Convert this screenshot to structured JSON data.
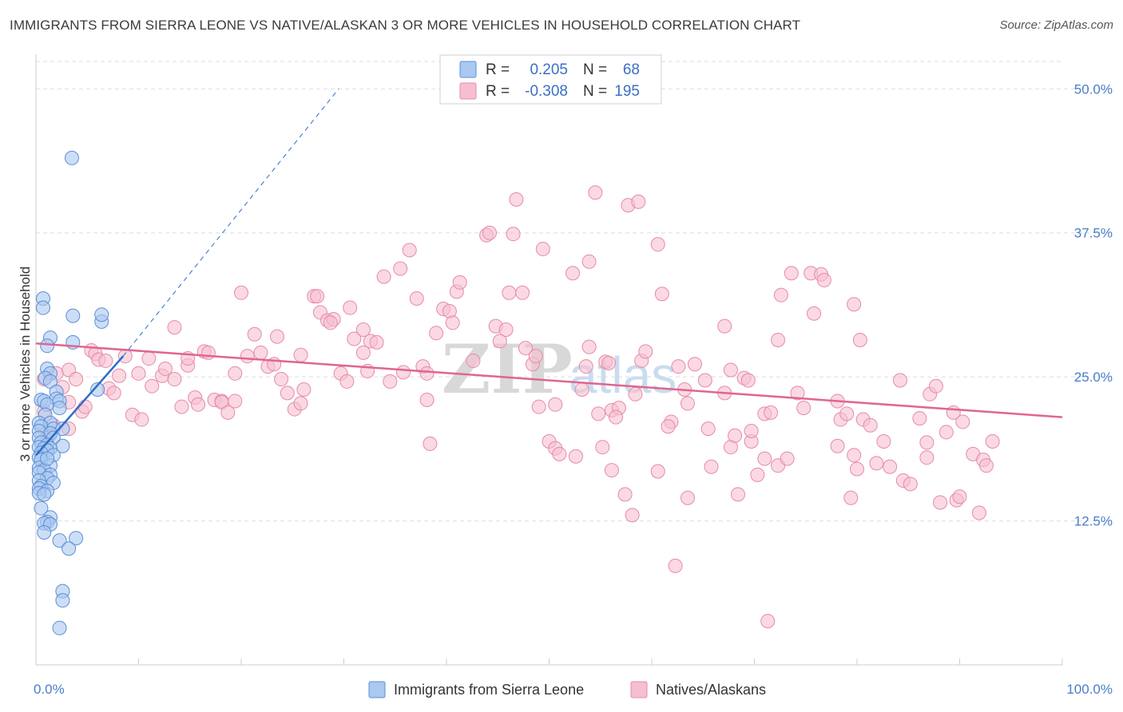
{
  "title": "IMMIGRANTS FROM SIERRA LEONE VS NATIVE/ALASKAN 3 OR MORE VEHICLES IN HOUSEHOLD CORRELATION CHART",
  "source": "Source: ZipAtlas.com",
  "watermark": {
    "zip": "ZIP",
    "atlas": "atlas"
  },
  "colors": {
    "blue_fill": "#aac8f0",
    "blue_stroke": "#5b8fd6",
    "blue_line": "#2d6cc9",
    "pink_fill": "#f6bfd0",
    "pink_stroke": "#e68aa8",
    "pink_line": "#e0658f",
    "grid": "#dddddd",
    "tick_text": "#4a7dc9"
  },
  "legend": {
    "r_label": "R =",
    "n_label": "N =",
    "rows": [
      {
        "series": "Immigrants from Sierra Leone",
        "r": "0.205",
        "n": "68"
      },
      {
        "series": "Natives/Alaskans",
        "r": "-0.308",
        "n": "195"
      }
    ]
  },
  "chart_data": {
    "type": "scatter",
    "title": "IMMIGRANTS FROM SIERRA LEONE VS NATIVE/ALASKAN 3 OR MORE VEHICLES IN HOUSEHOLD CORRELATION CHART",
    "xlabel": "",
    "ylabel": "3 or more Vehicles in Household",
    "xlim": [
      0,
      100
    ],
    "ylim": [
      0,
      53
    ],
    "x_tick_labels": [
      "0.0%",
      "100.0%"
    ],
    "y_ticks": [
      12.5,
      25.0,
      37.5,
      50.0
    ],
    "y_tick_labels": [
      "12.5%",
      "25.0%",
      "37.5%",
      "50.0%"
    ],
    "series": [
      {
        "name": "Immigrants from Sierra Leone",
        "r": 0.205,
        "n": 68,
        "trend": {
          "x0": 0,
          "y0": 18.2,
          "x1": 8.5,
          "y1": 26.8,
          "dash_to_x": 29.5,
          "dash_to_y": 50.0
        },
        "points": [
          [
            3.5,
            44.0
          ],
          [
            0.7,
            31.8
          ],
          [
            0.7,
            31.0
          ],
          [
            3.6,
            30.3
          ],
          [
            6.4,
            29.8
          ],
          [
            6.4,
            30.4
          ],
          [
            1.4,
            28.4
          ],
          [
            3.6,
            28.0
          ],
          [
            1.1,
            27.7
          ],
          [
            1.1,
            25.7
          ],
          [
            1.4,
            25.3
          ],
          [
            0.9,
            24.9
          ],
          [
            1.4,
            24.6
          ],
          [
            2.0,
            23.7
          ],
          [
            6.0,
            23.9
          ],
          [
            0.5,
            23.0
          ],
          [
            0.8,
            22.9
          ],
          [
            2.0,
            23.1
          ],
          [
            1.1,
            22.6
          ],
          [
            2.3,
            22.9
          ],
          [
            2.3,
            22.3
          ],
          [
            0.9,
            21.7
          ],
          [
            0.3,
            21.0
          ],
          [
            1.4,
            21.0
          ],
          [
            0.5,
            20.7
          ],
          [
            1.7,
            20.5
          ],
          [
            2.6,
            20.5
          ],
          [
            0.3,
            20.3
          ],
          [
            1.4,
            20.1
          ],
          [
            0.3,
            19.7
          ],
          [
            1.7,
            19.7
          ],
          [
            0.5,
            19.3
          ],
          [
            1.1,
            19.1
          ],
          [
            2.6,
            19.0
          ],
          [
            0.3,
            18.9
          ],
          [
            0.8,
            18.8
          ],
          [
            1.4,
            18.8
          ],
          [
            1.1,
            18.6
          ],
          [
            0.5,
            18.4
          ],
          [
            1.7,
            18.2
          ],
          [
            0.3,
            18.0
          ],
          [
            0.5,
            17.8
          ],
          [
            1.4,
            17.3
          ],
          [
            0.3,
            17.1
          ],
          [
            0.8,
            16.9
          ],
          [
            0.3,
            16.7
          ],
          [
            1.4,
            16.5
          ],
          [
            1.1,
            16.2
          ],
          [
            0.3,
            16.0
          ],
          [
            1.7,
            15.8
          ],
          [
            0.5,
            15.5
          ],
          [
            0.3,
            15.3
          ],
          [
            1.1,
            15.1
          ],
          [
            0.3,
            14.9
          ],
          [
            0.8,
            14.8
          ],
          [
            0.5,
            13.6
          ],
          [
            1.4,
            12.8
          ],
          [
            1.1,
            12.4
          ],
          [
            0.8,
            12.3
          ],
          [
            1.4,
            12.2
          ],
          [
            0.8,
            11.5
          ],
          [
            3.9,
            11.0
          ],
          [
            2.3,
            10.8
          ],
          [
            3.2,
            10.1
          ],
          [
            2.6,
            6.4
          ],
          [
            2.6,
            5.6
          ],
          [
            2.3,
            3.2
          ],
          [
            1.1,
            17.9
          ]
        ]
      },
      {
        "name": "Natives/Alaskans",
        "r": -0.308,
        "n": 195,
        "trend": {
          "x0": 0,
          "y0": 27.9,
          "x1": 100,
          "y1": 21.5
        },
        "points": [
          [
            0.8,
            24.8
          ],
          [
            0.8,
            22.0
          ],
          [
            1.1,
            20.2
          ],
          [
            1.4,
            20.0
          ],
          [
            1.7,
            20.8
          ],
          [
            1.1,
            19.7
          ],
          [
            2.0,
            25.3
          ],
          [
            2.6,
            24.1
          ],
          [
            3.2,
            25.6
          ],
          [
            3.2,
            22.8
          ],
          [
            3.9,
            24.8
          ],
          [
            3.2,
            20.5
          ],
          [
            4.5,
            22.0
          ],
          [
            4.8,
            22.4
          ],
          [
            5.4,
            27.3
          ],
          [
            5.8,
            27.0
          ],
          [
            6.1,
            26.5
          ],
          [
            6.8,
            26.4
          ],
          [
            7.1,
            24.0
          ],
          [
            7.6,
            23.6
          ],
          [
            8.1,
            25.1
          ],
          [
            8.7,
            26.8
          ],
          [
            9.4,
            21.7
          ],
          [
            10.0,
            25.3
          ],
          [
            10.3,
            21.3
          ],
          [
            11.3,
            24.2
          ],
          [
            11.0,
            26.6
          ],
          [
            12.3,
            25.1
          ],
          [
            12.6,
            25.7
          ],
          [
            13.5,
            24.8
          ],
          [
            13.5,
            29.3
          ],
          [
            14.2,
            22.4
          ],
          [
            14.8,
            26.0
          ],
          [
            14.8,
            26.6
          ],
          [
            15.5,
            23.2
          ],
          [
            15.8,
            22.6
          ],
          [
            16.4,
            27.2
          ],
          [
            16.8,
            27.1
          ],
          [
            17.4,
            23.0
          ],
          [
            18.1,
            22.9
          ],
          [
            18.1,
            22.8
          ],
          [
            18.7,
            21.9
          ],
          [
            19.4,
            25.3
          ],
          [
            19.4,
            22.9
          ],
          [
            20.0,
            32.3
          ],
          [
            20.6,
            26.8
          ],
          [
            21.3,
            28.7
          ],
          [
            21.9,
            27.1
          ],
          [
            22.6,
            25.9
          ],
          [
            23.5,
            28.5
          ],
          [
            23.2,
            26.1
          ],
          [
            23.9,
            24.8
          ],
          [
            24.5,
            23.6
          ],
          [
            25.2,
            22.2
          ],
          [
            25.8,
            26.9
          ],
          [
            25.8,
            22.7
          ],
          [
            26.1,
            23.9
          ],
          [
            27.1,
            32.0
          ],
          [
            27.4,
            32.0
          ],
          [
            27.7,
            30.6
          ],
          [
            28.4,
            29.9
          ],
          [
            29.0,
            30.0
          ],
          [
            28.7,
            29.7
          ],
          [
            29.7,
            25.3
          ],
          [
            30.3,
            24.6
          ],
          [
            30.6,
            31.0
          ],
          [
            31.0,
            28.3
          ],
          [
            31.9,
            29.1
          ],
          [
            31.9,
            27.1
          ],
          [
            32.3,
            25.5
          ],
          [
            32.6,
            28.1
          ],
          [
            33.2,
            28.0
          ],
          [
            33.9,
            33.7
          ],
          [
            34.5,
            24.6
          ],
          [
            35.5,
            34.4
          ],
          [
            35.8,
            25.4
          ],
          [
            36.4,
            36.0
          ],
          [
            37.1,
            31.8
          ],
          [
            37.7,
            25.9
          ],
          [
            38.1,
            23.0
          ],
          [
            38.4,
            19.2
          ],
          [
            38.1,
            25.3
          ],
          [
            39.0,
            28.8
          ],
          [
            39.7,
            30.9
          ],
          [
            40.3,
            30.7
          ],
          [
            40.6,
            29.7
          ],
          [
            41.0,
            32.4
          ],
          [
            41.3,
            33.2
          ],
          [
            42.6,
            26.4
          ],
          [
            43.9,
            37.3
          ],
          [
            44.2,
            37.5
          ],
          [
            44.8,
            29.4
          ],
          [
            45.2,
            28.1
          ],
          [
            45.8,
            29.1
          ],
          [
            46.1,
            32.3
          ],
          [
            46.5,
            37.4
          ],
          [
            46.8,
            40.4
          ],
          [
            47.4,
            32.3
          ],
          [
            47.7,
            27.5
          ],
          [
            48.4,
            26.1
          ],
          [
            48.7,
            26.8
          ],
          [
            49.0,
            22.4
          ],
          [
            49.4,
            36.1
          ],
          [
            50.0,
            19.4
          ],
          [
            50.6,
            18.8
          ],
          [
            50.6,
            22.6
          ],
          [
            51.0,
            18.3
          ],
          [
            52.3,
            34.0
          ],
          [
            52.6,
            18.1
          ],
          [
            53.2,
            23.9
          ],
          [
            53.9,
            35.0
          ],
          [
            53.9,
            27.6
          ],
          [
            53.6,
            25.9
          ],
          [
            54.5,
            41.0
          ],
          [
            54.8,
            21.8
          ],
          [
            55.2,
            18.9
          ],
          [
            55.5,
            26.3
          ],
          [
            55.8,
            26.2
          ],
          [
            56.1,
            22.1
          ],
          [
            56.1,
            16.9
          ],
          [
            56.8,
            22.3
          ],
          [
            56.5,
            21.5
          ],
          [
            57.4,
            14.8
          ],
          [
            57.7,
            39.9
          ],
          [
            58.7,
            40.2
          ],
          [
            58.4,
            23.5
          ],
          [
            58.1,
            13.0
          ],
          [
            59.0,
            26.4
          ],
          [
            59.4,
            27.2
          ],
          [
            60.6,
            16.8
          ],
          [
            60.6,
            36.5
          ],
          [
            61.0,
            32.2
          ],
          [
            61.9,
            21.1
          ],
          [
            61.6,
            20.7
          ],
          [
            62.3,
            8.6
          ],
          [
            62.6,
            25.9
          ],
          [
            63.2,
            23.9
          ],
          [
            63.5,
            22.7
          ],
          [
            63.5,
            14.5
          ],
          [
            64.2,
            26.1
          ],
          [
            65.2,
            24.7
          ],
          [
            65.5,
            20.5
          ],
          [
            65.8,
            17.2
          ],
          [
            67.1,
            23.6
          ],
          [
            67.1,
            29.4
          ],
          [
            67.7,
            25.6
          ],
          [
            67.7,
            18.9
          ],
          [
            68.1,
            19.9
          ],
          [
            68.4,
            14.8
          ],
          [
            69.0,
            24.9
          ],
          [
            69.4,
            24.7
          ],
          [
            69.7,
            19.4
          ],
          [
            69.7,
            20.3
          ],
          [
            70.3,
            16.5
          ],
          [
            71.0,
            21.8
          ],
          [
            71.0,
            17.9
          ],
          [
            71.3,
            3.8
          ],
          [
            71.6,
            21.9
          ],
          [
            72.3,
            28.2
          ],
          [
            72.6,
            32.1
          ],
          [
            72.3,
            17.3
          ],
          [
            73.2,
            17.9
          ],
          [
            73.6,
            34.0
          ],
          [
            74.2,
            23.6
          ],
          [
            74.8,
            22.3
          ],
          [
            75.5,
            34.0
          ],
          [
            75.8,
            30.5
          ],
          [
            76.5,
            33.9
          ],
          [
            76.8,
            33.4
          ],
          [
            78.1,
            22.9
          ],
          [
            78.1,
            19.0
          ],
          [
            78.4,
            21.3
          ],
          [
            79.0,
            21.8
          ],
          [
            79.7,
            31.3
          ],
          [
            79.7,
            18.2
          ],
          [
            79.4,
            14.5
          ],
          [
            80.3,
            28.2
          ],
          [
            80.0,
            17.0
          ],
          [
            80.6,
            21.3
          ],
          [
            81.3,
            20.8
          ],
          [
            81.9,
            17.5
          ],
          [
            82.6,
            19.4
          ],
          [
            83.2,
            17.2
          ],
          [
            84.2,
            24.7
          ],
          [
            84.5,
            16.0
          ],
          [
            85.2,
            15.7
          ],
          [
            86.1,
            21.4
          ],
          [
            86.8,
            18.0
          ],
          [
            86.8,
            19.3
          ],
          [
            87.1,
            23.5
          ],
          [
            87.7,
            24.2
          ],
          [
            88.1,
            14.1
          ],
          [
            88.7,
            20.2
          ],
          [
            89.4,
            21.9
          ],
          [
            89.7,
            14.3
          ],
          [
            90.0,
            14.6
          ],
          [
            90.3,
            21.1
          ],
          [
            91.3,
            18.3
          ],
          [
            91.9,
            13.2
          ],
          [
            92.3,
            17.8
          ],
          [
            92.6,
            17.3
          ],
          [
            93.2,
            19.4
          ]
        ]
      }
    ]
  },
  "bottom_legend": [
    "Immigrants from Sierra Leone",
    "Natives/Alaskans"
  ]
}
